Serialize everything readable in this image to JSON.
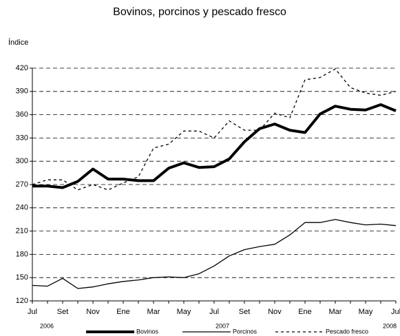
{
  "chart_data": {
    "type": "line",
    "title": "Bovinos, porcinos y pescado fresco",
    "y_label": "Índice",
    "categories": [
      "Jul",
      null,
      "Set",
      null,
      "Nov",
      null,
      "Ene",
      null,
      "Mar",
      null,
      "May",
      null,
      "Jul",
      null,
      "Set",
      null,
      "Nov",
      null,
      "Ene",
      null,
      "Mar",
      null,
      "May",
      null,
      "Jul"
    ],
    "years": [
      "2006",
      "2007",
      "2008"
    ],
    "series": [
      {
        "name": "Bovinos",
        "color": "#000000",
        "style": "thick",
        "values": [
          268,
          268,
          266,
          274,
          290,
          277,
          277,
          275,
          275,
          291,
          298,
          292,
          293,
          303,
          325,
          342,
          348,
          340,
          337,
          361,
          371,
          367,
          366,
          373,
          365
        ]
      },
      {
        "name": "Porcinos",
        "color": "#000000",
        "style": "thin",
        "values": [
          140,
          139,
          149,
          136,
          138,
          142,
          145,
          147,
          150,
          151,
          150,
          155,
          165,
          178,
          186,
          190,
          193,
          205,
          221,
          221,
          225,
          221,
          218,
          219,
          217
        ]
      },
      {
        "name": "Pescado fresco",
        "color": "#000000",
        "style": "dashed",
        "values": [
          270,
          276,
          276,
          263,
          270,
          263,
          272,
          280,
          317,
          322,
          339,
          339,
          330,
          352,
          340,
          340,
          362,
          356,
          405,
          408,
          419,
          395,
          388,
          385,
          390
        ]
      }
    ],
    "ylim": [
      120,
      420
    ],
    "yticks": [
      120,
      150,
      180,
      210,
      240,
      270,
      300,
      330,
      360,
      390,
      420
    ],
    "grid": true,
    "legend": "bottom"
  }
}
